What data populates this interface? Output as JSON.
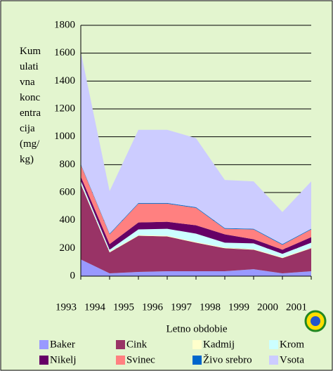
{
  "chart_data": {
    "type": "stacked_area",
    "ylabel": "Kumulativna koncentracija (mg/kg)",
    "xlabel": "Letno obdobie",
    "categories": [
      "1993",
      "1994",
      "1995",
      "1996",
      "1997",
      "1998",
      "1999",
      "2000",
      "2001"
    ],
    "ylim": [
      0,
      1800
    ],
    "yticks": [
      0,
      200,
      400,
      600,
      800,
      1000,
      1200,
      1400,
      1600,
      1800
    ],
    "grid": true,
    "series": [
      {
        "name": "Baker",
        "color": "#9999ff",
        "values": [
          120,
          20,
          30,
          35,
          35,
          35,
          50,
          20,
          35
        ]
      },
      {
        "name": "Cink",
        "color": "#993366",
        "values": [
          540,
          150,
          260,
          250,
          205,
          165,
          140,
          110,
          165
        ]
      },
      {
        "name": "Kadmij",
        "color": "#ffffcc",
        "values": [
          5,
          5,
          5,
          5,
          5,
          5,
          5,
          5,
          5
        ]
      },
      {
        "name": "Krom",
        "color": "#ccffff",
        "values": [
          20,
          15,
          40,
          50,
          60,
          35,
          40,
          25,
          35
        ]
      },
      {
        "name": "Nikelj",
        "color": "#660066",
        "values": [
          30,
          40,
          50,
          50,
          60,
          60,
          30,
          30,
          40
        ]
      },
      {
        "name": "Svinec",
        "color": "#ff8080",
        "values": [
          85,
          70,
          135,
          130,
          125,
          40,
          70,
          35,
          55
        ]
      },
      {
        "name": "Živo srebro",
        "color": "#0066cc",
        "values": [
          5,
          5,
          5,
          5,
          5,
          5,
          5,
          5,
          5
        ]
      },
      {
        "name": "Vsota",
        "color": "#ccccff",
        "values": [
          805,
          305,
          525,
          525,
          495,
          345,
          340,
          230,
          340
        ]
      }
    ]
  }
}
